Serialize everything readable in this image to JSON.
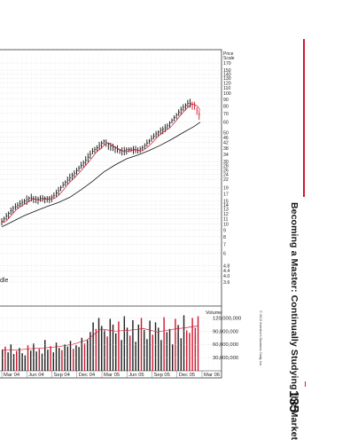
{
  "page": {
    "running_head": "Becoming a Master: Continually Studying the Market",
    "page_number": "135",
    "copyright": "© 2012 Investor's Business Daily, Inc.",
    "accent_color": "#d01a32"
  },
  "chart_data": {
    "type": "line",
    "price_scale_label": [
      "Price",
      "Scale"
    ],
    "price_ticks": [
      170,
      150,
      140,
      130,
      120,
      110,
      100,
      90,
      80,
      70,
      60,
      50,
      46,
      42,
      38,
      34,
      30,
      28,
      26,
      24,
      22,
      19,
      17,
      15,
      14,
      13,
      12,
      11,
      10,
      9,
      8,
      7,
      6,
      4.8,
      4.4,
      4.0,
      3.6
    ],
    "price_tick_labels": [
      "170",
      "150",
      "140",
      "130",
      "120",
      "110",
      "100",
      "90",
      "80",
      "70",
      "60",
      "50",
      "46",
      "42",
      "38",
      "34",
      "30",
      "28",
      "26",
      "24",
      "22",
      "19",
      "17",
      "15",
      "14",
      "13",
      "12",
      "11",
      "10",
      "9",
      "8",
      "7",
      "6",
      "4.8",
      "4.4",
      "4.0",
      "3.6"
    ],
    "log_scale": true,
    "partial_annotation": "dle",
    "x_labels": [
      "Mar 04",
      "Jun 04",
      "Sep 04",
      "Dec 04",
      "Mar 05",
      "Jun 05",
      "Sep 05",
      "Dec 05",
      "Mar 06"
    ],
    "volume_label": "Volume",
    "volume_ticks": [
      120000000,
      90000000,
      60000000,
      30000000
    ],
    "volume_tick_labels": [
      "120,000,000",
      "90,000,000",
      "60,000,000",
      "30,000,000"
    ],
    "price": {
      "t": [
        0,
        3,
        6,
        9,
        12,
        15,
        18,
        21,
        24,
        27,
        30,
        33,
        36,
        39,
        42,
        45,
        48,
        51,
        54,
        57,
        60,
        63,
        66,
        69,
        72,
        75,
        78,
        81,
        84,
        87,
        90,
        93,
        96,
        99,
        102,
        105
      ],
      "v": [
        10.5,
        11.8,
        13.2,
        14.1,
        15.0,
        15.9,
        15.4,
        15.8,
        15.6,
        16.2,
        18.0,
        20.5,
        22.5,
        25.0,
        28.0,
        31.5,
        36.0,
        39.0,
        43.0,
        40.0,
        38.0,
        36.0,
        37.0,
        37.5,
        36.5,
        39.0,
        43.0,
        48.0,
        52.0,
        55.0,
        62.0,
        70.0,
        78.0,
        85.0,
        80.0,
        66.0
      ]
    },
    "ma_long": {
      "t": [
        0,
        6,
        12,
        18,
        24,
        30,
        36,
        42,
        48,
        54,
        60,
        66,
        72,
        78,
        84,
        90,
        96,
        102,
        105
      ],
      "v": [
        9.5,
        10.5,
        11.6,
        12.6,
        13.6,
        14.6,
        16.0,
        18.3,
        21.2,
        25.0,
        28.3,
        31.5,
        33.7,
        36.5,
        40.0,
        44.5,
        50.0,
        56.0,
        60.0
      ]
    },
    "volume": [
      48000000,
      55000000,
      42000000,
      60000000,
      38000000,
      45000000,
      52000000,
      40000000,
      35000000,
      58000000,
      46000000,
      62000000,
      44000000,
      50000000,
      39000000,
      70000000,
      48000000,
      56000000,
      42000000,
      64000000,
      52000000,
      47000000,
      60000000,
      55000000,
      68000000,
      50000000,
      58000000,
      54000000,
      75000000,
      62000000,
      70000000,
      88000000,
      110000000,
      95000000,
      120000000,
      102000000,
      92000000,
      78000000,
      118000000,
      105000000,
      85000000,
      112000000,
      70000000,
      124000000,
      98000000,
      80000000,
      115000000,
      66000000,
      105000000,
      120000000,
      93000000,
      72000000,
      114000000,
      82000000,
      110000000,
      98000000,
      70000000,
      122000000,
      88000000,
      95000000,
      60000000,
      118000000,
      104000000,
      74000000,
      126000000,
      92000000,
      86000000,
      120000000,
      98000000,
      124000000
    ],
    "volume_ma": {
      "t": [
        0,
        5,
        10,
        15,
        20,
        25,
        30,
        35,
        40,
        45,
        50,
        55,
        60,
        65,
        69
      ],
      "v": [
        48000000,
        47000000,
        50000000,
        52000000,
        55000000,
        60000000,
        70000000,
        95000000,
        90000000,
        92000000,
        96000000,
        88000000,
        94000000,
        98000000,
        102000000
      ]
    }
  }
}
